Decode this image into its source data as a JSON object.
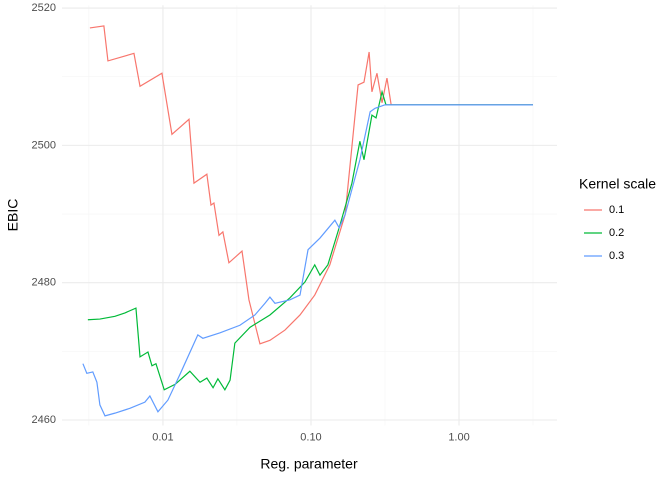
{
  "chart_data": {
    "type": "line",
    "x_label": "Reg. parameter",
    "y_label": "EBIC",
    "legend_title": "Kernel scale",
    "log_x": true,
    "grid": true,
    "legend_position": "right",
    "xlim": [
      0.00208,
      4.59
    ],
    "ylim": [
      2459.2,
      2520.4
    ],
    "xticks": [
      0.01,
      {
        "value": 0.1,
        "label": "0.10"
      },
      {
        "value": 1,
        "label": "1.00"
      }
    ],
    "yticks": [
      2460,
      2480,
      2500,
      2520
    ],
    "x_minor_gridlines": [
      0.00316,
      0.0316,
      0.316,
      3.16
    ],
    "y_minor_gridlines": [
      2470,
      2490,
      2510
    ],
    "series": [
      {
        "name": "0.1",
        "color": "#f8766d",
        "x": [
          0.00321,
          0.00399,
          0.00425,
          0.00637,
          0.007,
          0.00984,
          0.0115,
          0.015,
          0.0162,
          0.0198,
          0.0211,
          0.0221,
          0.0239,
          0.0254,
          0.0279,
          0.0342,
          0.0381,
          0.0452,
          0.0528,
          0.0667,
          0.0843,
          0.106,
          0.134,
          0.17,
          0.208,
          0.228,
          0.247,
          0.258,
          0.279,
          0.302,
          0.326,
          0.348,
          0.545,
          3.16
        ],
        "values": [
          2517.1,
          2517.4,
          2512.3,
          2513.4,
          2508.6,
          2510.5,
          2501.6,
          2503.8,
          2494.5,
          2495.8,
          2491.3,
          2491.6,
          2486.9,
          2487.4,
          2482.9,
          2484.6,
          2477.5,
          2471.1,
          2471.6,
          2473.1,
          2475.3,
          2478.2,
          2482.6,
          2489.9,
          2508.8,
          2509.2,
          2513.6,
          2507.8,
          2510.5,
          2506.2,
          2509.8,
          2505.9,
          2505.9,
          2505.9
        ]
      },
      {
        "name": "0.2",
        "color": "#00ba38",
        "x": [
          0.00311,
          0.00375,
          0.00474,
          0.00554,
          0.00657,
          0.007,
          0.00792,
          0.00843,
          0.00897,
          0.0102,
          0.0121,
          0.0152,
          0.0178,
          0.0198,
          0.0218,
          0.0235,
          0.0262,
          0.0284,
          0.0306,
          0.0387,
          0.0528,
          0.0721,
          0.091,
          0.106,
          0.115,
          0.13,
          0.157,
          0.189,
          0.214,
          0.228,
          0.258,
          0.275,
          0.302,
          0.321,
          0.545,
          3.16
        ],
        "values": [
          2474.6,
          2474.7,
          2475.1,
          2475.6,
          2476.3,
          2469.2,
          2469.9,
          2467.9,
          2468.2,
          2464.4,
          2465.2,
          2467.1,
          2465.5,
          2466.1,
          2464.7,
          2466.0,
          2464.4,
          2465.8,
          2471.2,
          2473.5,
          2475.3,
          2477.8,
          2480.1,
          2482.6,
          2481.1,
          2482.6,
          2488.4,
          2494.5,
          2500.6,
          2497.9,
          2504.4,
          2504.0,
          2507.8,
          2505.9,
          2505.9,
          2505.9
        ]
      },
      {
        "name": "0.3",
        "color": "#619cff",
        "x": [
          0.00288,
          0.00306,
          0.00336,
          0.00358,
          0.00375,
          0.00406,
          0.00474,
          0.00598,
          0.00755,
          0.00816,
          0.00925,
          0.0108,
          0.013,
          0.0172,
          0.0186,
          0.0243,
          0.0331,
          0.0418,
          0.0489,
          0.0528,
          0.0571,
          0.0721,
          0.0843,
          0.0955,
          0.115,
          0.145,
          0.155,
          0.17,
          0.214,
          0.251,
          0.271,
          0.316,
          0.545,
          3.16
        ],
        "values": [
          2468.2,
          2466.8,
          2467.0,
          2465.5,
          2462.2,
          2460.6,
          2461.0,
          2461.7,
          2462.6,
          2463.5,
          2461.2,
          2462.9,
          2466.6,
          2472.4,
          2471.9,
          2472.7,
          2473.8,
          2475.3,
          2477.0,
          2477.9,
          2477.0,
          2477.5,
          2478.2,
          2484.8,
          2486.5,
          2489.1,
          2488.0,
          2489.9,
          2497.9,
          2504.9,
          2505.4,
          2505.9,
          2505.9,
          2505.9
        ]
      }
    ]
  }
}
